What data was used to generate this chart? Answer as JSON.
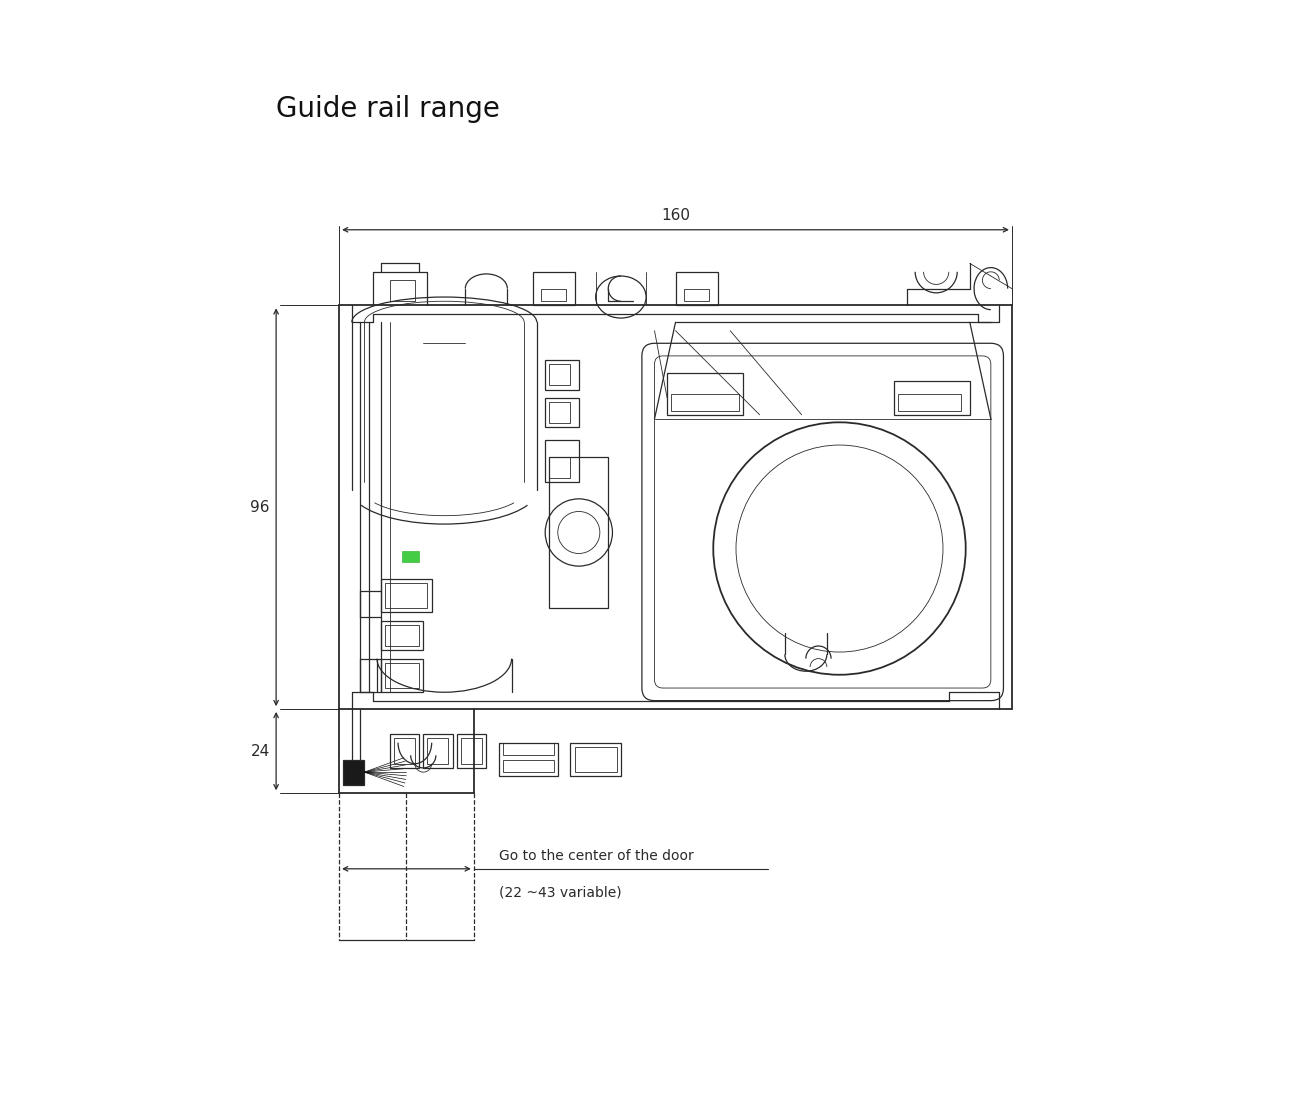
{
  "title": "Guide rail range",
  "title_fontsize": 20,
  "background_color": "#ffffff",
  "line_color": "#2a2a2a",
  "dim_color": "#2a2a2a",
  "annotation_color": "#2a2a2a",
  "dim_160_label": "160",
  "dim_96_label": "96",
  "dim_24_label": "24",
  "dim_variable_label": "(22 ~43 variable)",
  "dim_goto_label": "Go to the center of the door",
  "fig_width": 13.09,
  "fig_height": 11.07,
  "dpi": 100
}
